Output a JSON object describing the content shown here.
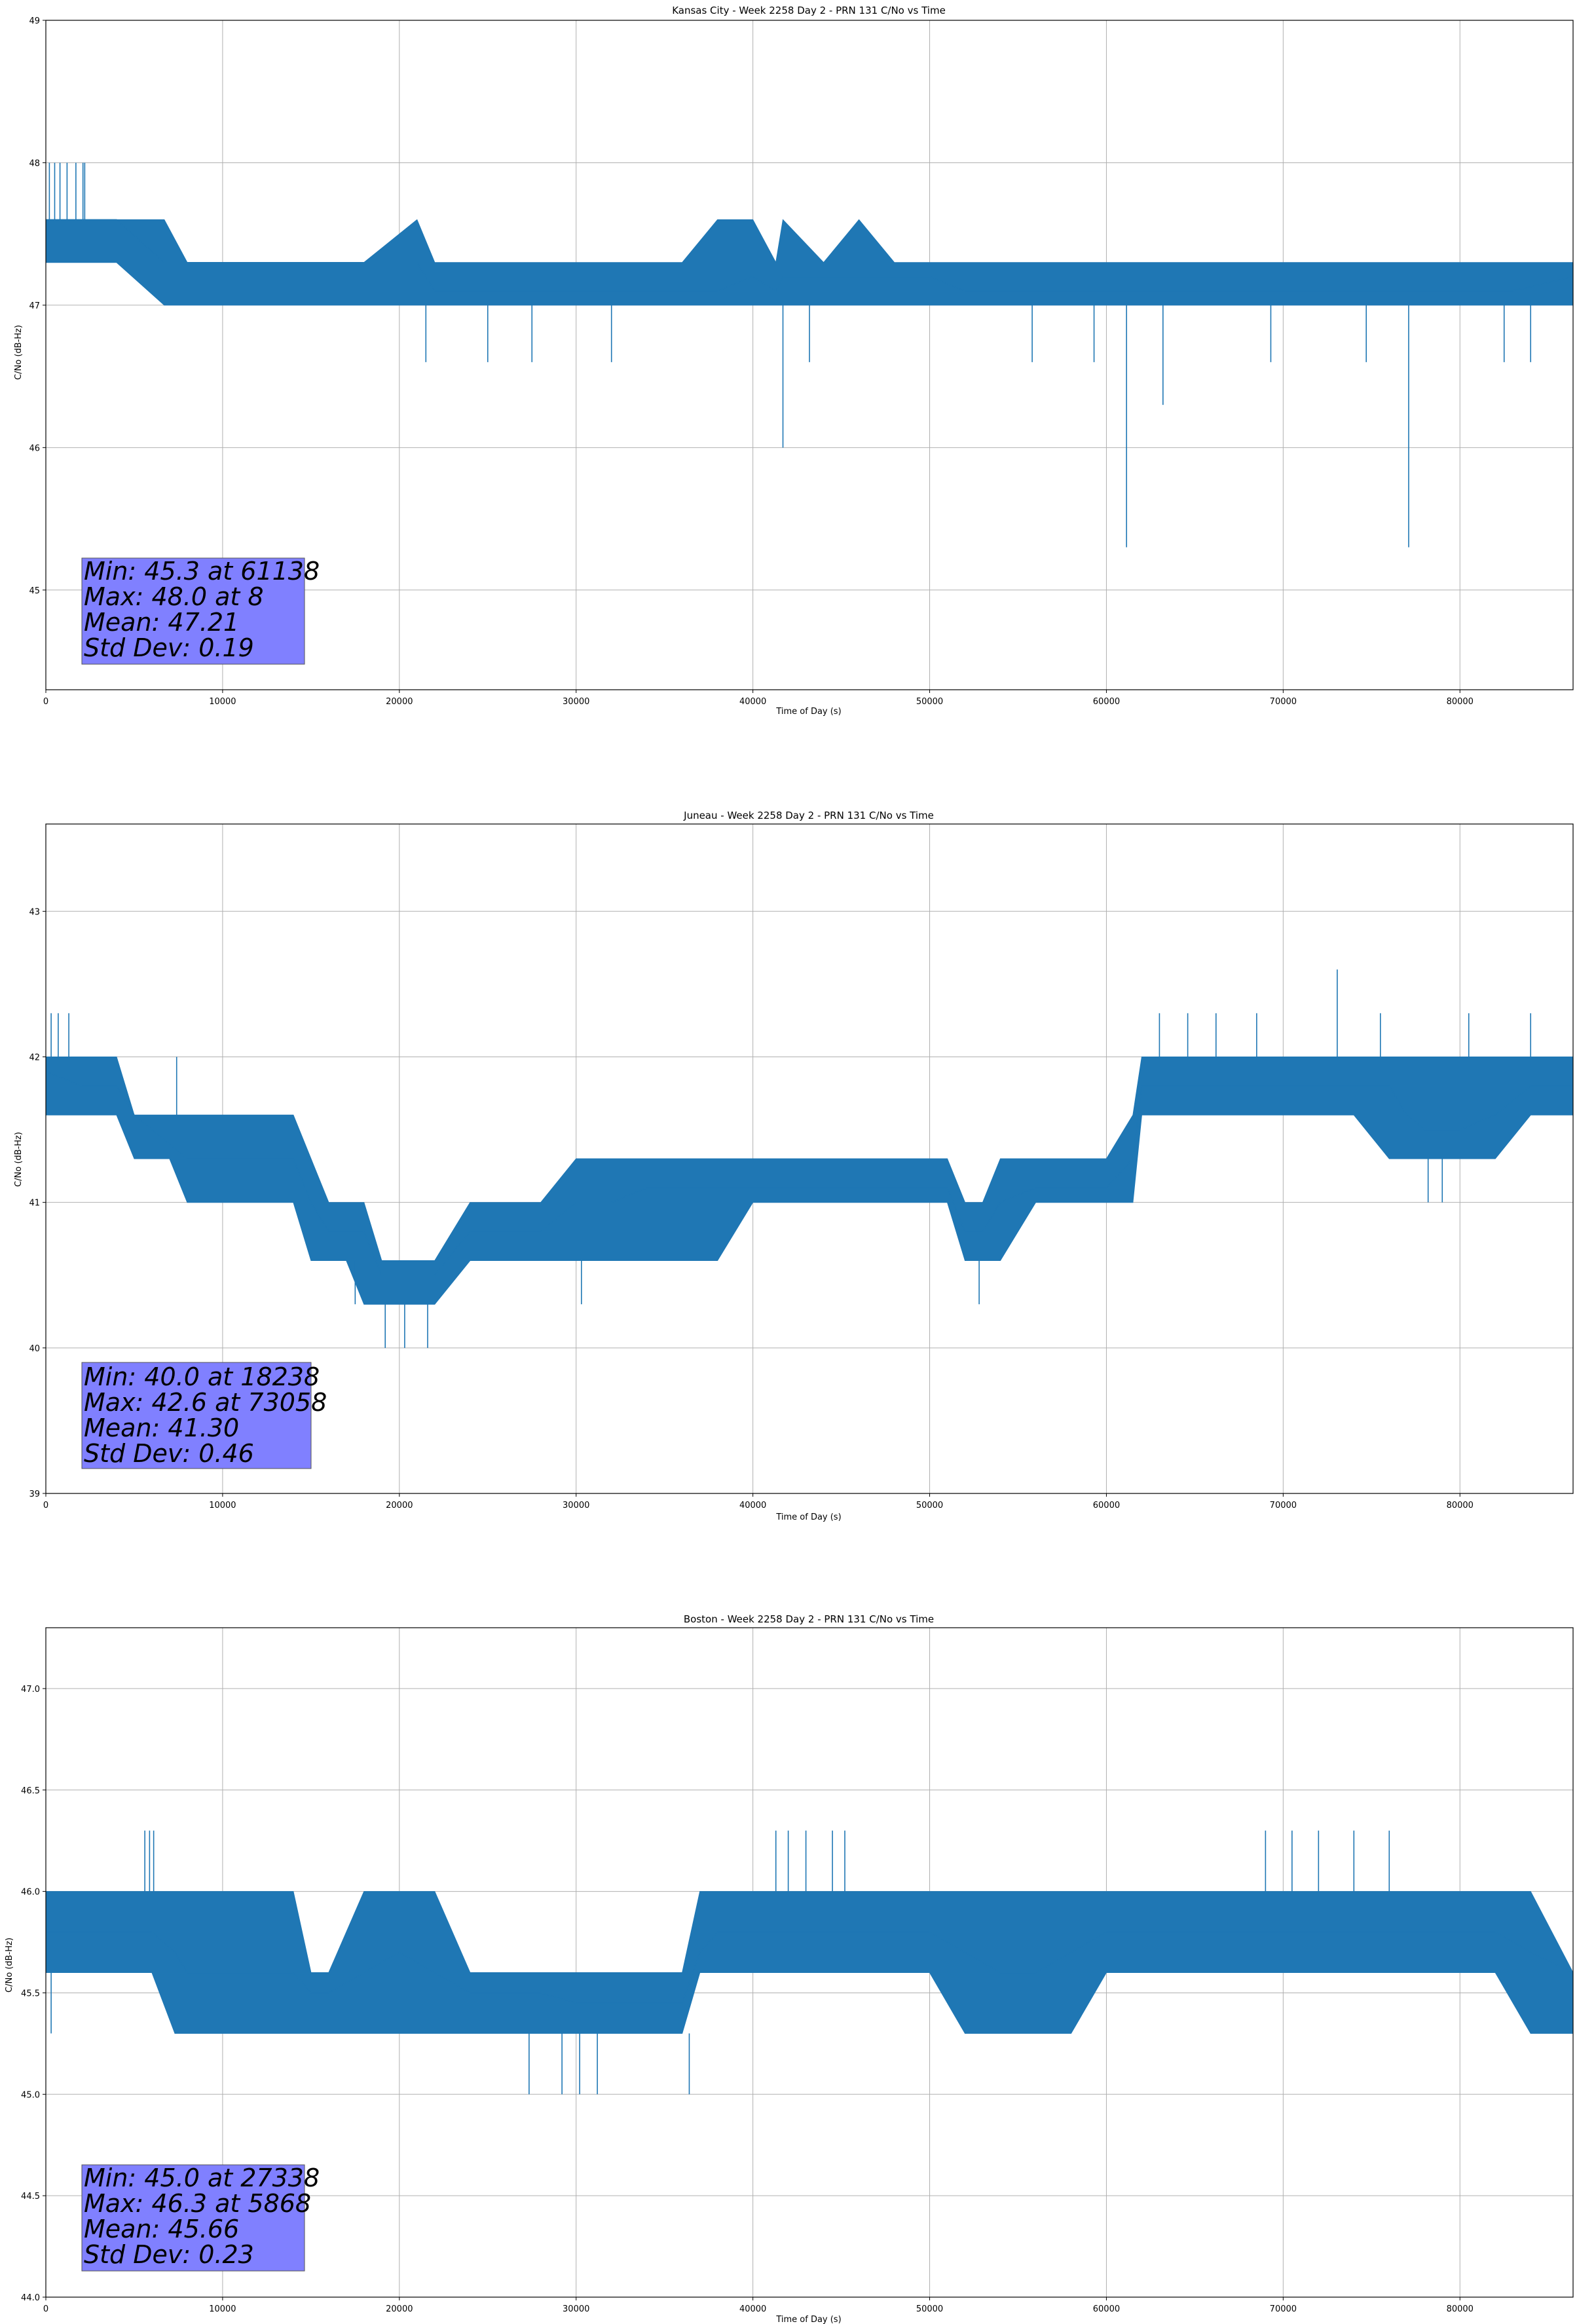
{
  "chart_data": [
    {
      "type": "line",
      "title": "Kansas City - Week 2258 Day 2 - PRN 131 C/No vs Time",
      "xlabel": "Time of Day (s)",
      "ylabel": "C/No (dB-Hz)",
      "xlim": [
        0,
        86400
      ],
      "ylim": [
        44.3,
        49.0
      ],
      "xticks": [
        0,
        10000,
        20000,
        30000,
        40000,
        50000,
        60000,
        70000,
        80000
      ],
      "yticks": [
        45,
        46,
        47,
        48,
        49
      ],
      "ytick_decimals": 0,
      "grid": true,
      "color": "#1f77b4",
      "series": [
        {
          "x": [
            0,
            2200,
            4000,
            6700,
            8000,
            10000,
            14000,
            18000,
            21000,
            22000,
            24000,
            26000,
            28000,
            30000,
            34000,
            36000,
            38000,
            40000,
            41300,
            41700,
            44000,
            46000,
            48000,
            50000,
            52000,
            54000,
            56000,
            58000,
            60000,
            61138,
            62000,
            63200,
            66000,
            70000,
            74000,
            77100,
            80000,
            83000,
            86400
          ],
          "y": [
            47.6,
            47.6,
            47.6,
            47.3,
            47.3,
            47.3,
            47.3,
            47.3,
            47.3,
            47.1,
            47.1,
            47.1,
            47.1,
            47.1,
            47.1,
            47.1,
            47.1,
            47.2,
            47.1,
            47.2,
            47.2,
            47.2,
            47.2,
            47.2,
            47.1,
            47.1,
            47.1,
            47.1,
            47.1,
            47.1,
            47.1,
            47.1,
            47.1,
            47.1,
            47.1,
            47.1,
            47.1,
            47.1,
            47.2
          ],
          "band_low": [
            47.3,
            47.3,
            47.3,
            47.0,
            47.0,
            47.0,
            47.0,
            47.0,
            47.0,
            47.0,
            47.0,
            47.0,
            47.0,
            47.0,
            47.0,
            47.0,
            47.0,
            47.0,
            47.0,
            47.0,
            47.0,
            47.0,
            47.0,
            47.0,
            47.0,
            47.0,
            47.0,
            47.0,
            47.0,
            47.0,
            47.0,
            47.0,
            47.0,
            47.0,
            47.0,
            47.0,
            47.0,
            47.0,
            47.0
          ],
          "band_high": [
            47.6,
            47.6,
            47.6,
            47.6,
            47.3,
            47.3,
            47.3,
            47.3,
            47.6,
            47.3,
            47.3,
            47.3,
            47.3,
            47.3,
            47.3,
            47.3,
            47.6,
            47.6,
            47.3,
            47.6,
            47.3,
            47.6,
            47.3,
            47.3,
            47.3,
            47.3,
            47.3,
            47.3,
            47.3,
            47.3,
            47.3,
            47.3,
            47.3,
            47.3,
            47.3,
            47.3,
            47.3,
            47.3,
            47.3
          ]
        }
      ],
      "spikes": [
        {
          "x": 200,
          "y": 48.0
        },
        {
          "x": 500,
          "y": 48.0
        },
        {
          "x": 800,
          "y": 48.0
        },
        {
          "x": 1200,
          "y": 48.0
        },
        {
          "x": 1700,
          "y": 48.0
        },
        {
          "x": 2100,
          "y": 48.0
        },
        {
          "x": 2200,
          "y": 48.0
        },
        {
          "x": 21500,
          "y": 46.6
        },
        {
          "x": 25000,
          "y": 46.6
        },
        {
          "x": 27500,
          "y": 46.6
        },
        {
          "x": 32000,
          "y": 46.6
        },
        {
          "x": 41700,
          "y": 46.0
        },
        {
          "x": 43200,
          "y": 46.6
        },
        {
          "x": 55800,
          "y": 46.6
        },
        {
          "x": 59300,
          "y": 46.6
        },
        {
          "x": 61138,
          "y": 45.3
        },
        {
          "x": 63200,
          "y": 46.3
        },
        {
          "x": 69300,
          "y": 46.6
        },
        {
          "x": 74700,
          "y": 46.6
        },
        {
          "x": 77100,
          "y": 45.3
        },
        {
          "x": 82500,
          "y": 46.6
        },
        {
          "x": 84000,
          "y": 46.6
        }
      ],
      "stats": [
        "Min: 45.3 at 61138",
        "Max: 48.0 at 8",
        "Mean: 47.21",
        "Std Dev: 0.19"
      ]
    },
    {
      "type": "line",
      "title": "Juneau - Week 2258 Day 2 - PRN 131 C/No vs Time",
      "xlabel": "Time of Day (s)",
      "ylabel": "C/No (dB-Hz)",
      "xlim": [
        0,
        86400
      ],
      "ylim": [
        39.0,
        43.6
      ],
      "xticks": [
        0,
        10000,
        20000,
        30000,
        40000,
        50000,
        60000,
        70000,
        80000
      ],
      "yticks": [
        39,
        40,
        41,
        42,
        43
      ],
      "ytick_decimals": 0,
      "grid": true,
      "color": "#1f77b4",
      "series": [
        {
          "x": [
            0,
            2000,
            4000,
            5000,
            7000,
            8000,
            10000,
            12000,
            14000,
            15000,
            16000,
            17000,
            18000,
            19000,
            20000,
            22000,
            24000,
            26000,
            28000,
            30000,
            32000,
            34000,
            36000,
            38000,
            40000,
            42000,
            44000,
            46000,
            48000,
            50000,
            51000,
            52000,
            53000,
            54000,
            56000,
            58000,
            60000,
            61500,
            62000,
            64000,
            66000,
            68000,
            70000,
            72000,
            74000,
            76000,
            77000,
            78000,
            80000,
            82000,
            84000,
            86400
          ],
          "y": [
            41.9,
            41.8,
            41.8,
            41.6,
            41.4,
            41.3,
            41.3,
            41.3,
            41.3,
            41.0,
            40.8,
            40.8,
            40.8,
            40.5,
            40.5,
            40.5,
            40.8,
            40.8,
            40.8,
            41.0,
            41.0,
            41.1,
            41.1,
            41.1,
            41.1,
            41.1,
            41.1,
            41.1,
            41.1,
            41.1,
            41.1,
            40.8,
            40.8,
            41.0,
            41.1,
            41.1,
            41.1,
            41.3,
            41.8,
            41.8,
            41.8,
            41.8,
            41.8,
            41.8,
            41.8,
            41.8,
            41.6,
            41.5,
            41.5,
            41.6,
            41.8,
            41.8
          ],
          "band_low": [
            41.6,
            41.6,
            41.6,
            41.3,
            41.3,
            41.0,
            41.0,
            41.0,
            41.0,
            40.6,
            40.6,
            40.6,
            40.3,
            40.3,
            40.3,
            40.3,
            40.6,
            40.6,
            40.6,
            40.6,
            40.6,
            40.6,
            40.6,
            40.6,
            41.0,
            41.0,
            41.0,
            41.0,
            41.0,
            41.0,
            41.0,
            40.6,
            40.6,
            40.6,
            41.0,
            41.0,
            41.0,
            41.0,
            41.6,
            41.6,
            41.6,
            41.6,
            41.6,
            41.6,
            41.6,
            41.3,
            41.3,
            41.3,
            41.3,
            41.3,
            41.6,
            41.6
          ],
          "band_high": [
            42.0,
            42.0,
            42.0,
            41.6,
            41.6,
            41.6,
            41.6,
            41.6,
            41.6,
            41.3,
            41.0,
            41.0,
            41.0,
            40.6,
            40.6,
            40.6,
            41.0,
            41.0,
            41.0,
            41.3,
            41.3,
            41.3,
            41.3,
            41.3,
            41.3,
            41.3,
            41.3,
            41.3,
            41.3,
            41.3,
            41.3,
            41.0,
            41.0,
            41.3,
            41.3,
            41.3,
            41.3,
            41.6,
            42.0,
            42.0,
            42.0,
            42.0,
            42.0,
            42.0,
            42.0,
            42.0,
            42.0,
            42.0,
            42.0,
            42.0,
            42.0,
            42.0
          ]
        }
      ],
      "spikes": [
        {
          "x": 300,
          "y": 42.3
        },
        {
          "x": 700,
          "y": 42.3
        },
        {
          "x": 1300,
          "y": 42.3
        },
        {
          "x": 7400,
          "y": 42.0
        },
        {
          "x": 17500,
          "y": 40.3
        },
        {
          "x": 19200,
          "y": 40.0
        },
        {
          "x": 20300,
          "y": 40.0
        },
        {
          "x": 21600,
          "y": 40.0
        },
        {
          "x": 30300,
          "y": 40.3
        },
        {
          "x": 52800,
          "y": 40.3
        },
        {
          "x": 63000,
          "y": 42.3
        },
        {
          "x": 64600,
          "y": 42.3
        },
        {
          "x": 66200,
          "y": 42.3
        },
        {
          "x": 68500,
          "y": 42.3
        },
        {
          "x": 73058,
          "y": 42.6
        },
        {
          "x": 75500,
          "y": 42.3
        },
        {
          "x": 78200,
          "y": 41.0
        },
        {
          "x": 79000,
          "y": 41.0
        },
        {
          "x": 80500,
          "y": 42.3
        },
        {
          "x": 84000,
          "y": 42.3
        }
      ],
      "stats": [
        "Min: 40.0 at 18238",
        "Max: 42.6 at 73058",
        "Mean: 41.30",
        "Std Dev: 0.46"
      ]
    },
    {
      "type": "line",
      "title": "Boston - Week 2258 Day 2 - PRN 131 C/No vs Time",
      "xlabel": "Time of Day (s)",
      "ylabel": "C/No (dB-Hz)",
      "xlim": [
        0,
        86400
      ],
      "ylim": [
        44.0,
        47.3
      ],
      "xticks": [
        0,
        10000,
        20000,
        30000,
        40000,
        50000,
        60000,
        70000,
        80000
      ],
      "yticks": [
        44.0,
        44.5,
        45.0,
        45.5,
        46.0,
        46.5,
        47.0
      ],
      "ytick_decimals": 1,
      "grid": true,
      "color": "#1f77b4",
      "series": [
        {
          "x": [
            0,
            2000,
            4000,
            6000,
            7300,
            8000,
            10000,
            12000,
            14000,
            15000,
            16000,
            18000,
            20000,
            22000,
            24000,
            26000,
            28000,
            30000,
            32000,
            34000,
            36000,
            37000,
            38000,
            40000,
            42000,
            44000,
            46000,
            48000,
            50000,
            52000,
            54000,
            56000,
            58000,
            60000,
            62000,
            64000,
            66000,
            68000,
            70000,
            72000,
            74000,
            76000,
            78000,
            80000,
            82000,
            84000,
            86400
          ],
          "y": [
            45.8,
            45.8,
            45.8,
            45.8,
            45.7,
            45.6,
            45.6,
            45.6,
            45.6,
            45.5,
            45.5,
            45.6,
            45.7,
            45.6,
            45.5,
            45.5,
            45.5,
            45.45,
            45.45,
            45.45,
            45.45,
            45.7,
            45.8,
            45.8,
            45.8,
            45.8,
            45.8,
            45.8,
            45.8,
            45.7,
            45.6,
            45.6,
            45.7,
            45.8,
            45.8,
            45.8,
            45.8,
            45.8,
            45.8,
            45.8,
            45.8,
            45.8,
            45.8,
            45.8,
            45.8,
            45.7,
            45.6
          ],
          "band_low": [
            45.6,
            45.6,
            45.6,
            45.6,
            45.3,
            45.3,
            45.3,
            45.3,
            45.3,
            45.3,
            45.3,
            45.3,
            45.3,
            45.3,
            45.3,
            45.3,
            45.3,
            45.3,
            45.3,
            45.3,
            45.3,
            45.6,
            45.6,
            45.6,
            45.6,
            45.6,
            45.6,
            45.6,
            45.6,
            45.3,
            45.3,
            45.3,
            45.3,
            45.6,
            45.6,
            45.6,
            45.6,
            45.6,
            45.6,
            45.6,
            45.6,
            45.6,
            45.6,
            45.6,
            45.6,
            45.3,
            45.3
          ],
          "band_high": [
            46.0,
            46.0,
            46.0,
            46.0,
            46.0,
            46.0,
            46.0,
            46.0,
            46.0,
            45.6,
            45.6,
            46.0,
            46.0,
            46.0,
            45.6,
            45.6,
            45.6,
            45.6,
            45.6,
            45.6,
            45.6,
            46.0,
            46.0,
            46.0,
            46.0,
            46.0,
            46.0,
            46.0,
            46.0,
            46.0,
            46.0,
            46.0,
            46.0,
            46.0,
            46.0,
            46.0,
            46.0,
            46.0,
            46.0,
            46.0,
            46.0,
            46.0,
            46.0,
            46.0,
            46.0,
            46.0,
            45.6
          ]
        }
      ],
      "spikes": [
        {
          "x": 300,
          "y": 45.3
        },
        {
          "x": 5600,
          "y": 46.3
        },
        {
          "x": 5868,
          "y": 46.3
        },
        {
          "x": 6100,
          "y": 46.3
        },
        {
          "x": 27338,
          "y": 45.0
        },
        {
          "x": 29200,
          "y": 45.0
        },
        {
          "x": 30200,
          "y": 45.0
        },
        {
          "x": 31200,
          "y": 45.0
        },
        {
          "x": 36400,
          "y": 45.0
        },
        {
          "x": 41300,
          "y": 46.3
        },
        {
          "x": 42000,
          "y": 46.3
        },
        {
          "x": 43000,
          "y": 46.3
        },
        {
          "x": 44500,
          "y": 46.3
        },
        {
          "x": 45200,
          "y": 46.3
        },
        {
          "x": 69000,
          "y": 46.3
        },
        {
          "x": 70500,
          "y": 46.3
        },
        {
          "x": 72000,
          "y": 46.3
        },
        {
          "x": 74000,
          "y": 46.3
        },
        {
          "x": 76000,
          "y": 46.3
        }
      ],
      "stats": [
        "Min: 45.0 at 27338",
        "Max: 46.3 at 5868",
        "Mean: 45.66",
        "Std Dev: 0.23"
      ]
    }
  ]
}
